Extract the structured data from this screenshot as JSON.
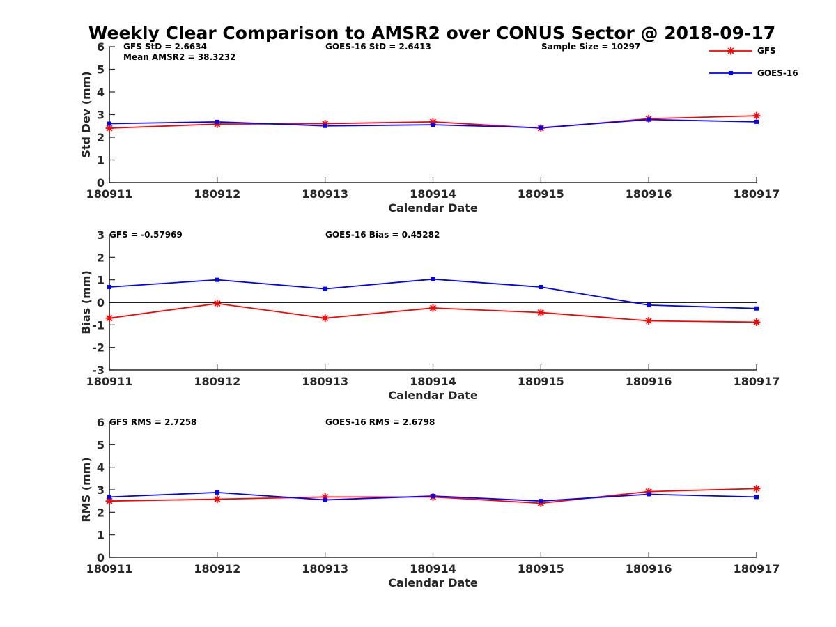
{
  "title": "Weekly Clear Comparison to AMSR2 over CONUS Sector @ 2018-09-17",
  "legend": [
    {
      "name": "GFS",
      "color": "#ff0000",
      "marker": "asterisk"
    },
    {
      "name": "GOES-16",
      "color": "#0000ff",
      "marker": "square"
    }
  ],
  "chart_data": [
    {
      "type": "line",
      "xlabel": "Calendar Date",
      "ylabel": "Std Dev (mm)",
      "ylim": [
        0,
        6
      ],
      "yticks": [
        "0",
        "1",
        "2",
        "3",
        "4",
        "5",
        "6"
      ],
      "categories": [
        "180911",
        "180912",
        "180913",
        "180914",
        "180915",
        "180916",
        "180917"
      ],
      "series": [
        {
          "name": "GFS",
          "color": "#ff0000",
          "values": [
            2.4,
            2.58,
            2.6,
            2.68,
            2.4,
            2.82,
            2.95
          ]
        },
        {
          "name": "GOES-16",
          "color": "#0000ff",
          "values": [
            2.6,
            2.68,
            2.5,
            2.55,
            2.42,
            2.78,
            2.68
          ]
        }
      ],
      "zero_line": false,
      "annotations": [
        "GFS StD = 2.6634",
        "Mean AMSR2 = 38.3232",
        "GOES-16 StD = 2.6413",
        "Sample Size = 10297"
      ]
    },
    {
      "type": "line",
      "xlabel": "Calendar Date",
      "ylabel": "Bias (mm)",
      "ylim": [
        -3,
        3
      ],
      "yticks": [
        "-3",
        "-2",
        "-1",
        "0",
        "1",
        "2",
        "3"
      ],
      "categories": [
        "180911",
        "180912",
        "180913",
        "180914",
        "180915",
        "180916",
        "180917"
      ],
      "series": [
        {
          "name": "GFS",
          "color": "#ff0000",
          "values": [
            -0.7,
            -0.05,
            -0.7,
            -0.25,
            -0.45,
            -0.82,
            -0.88
          ]
        },
        {
          "name": "GOES-16",
          "color": "#0000ff",
          "values": [
            0.68,
            1.0,
            0.6,
            1.03,
            0.68,
            -0.12,
            -0.27
          ]
        }
      ],
      "zero_line": true,
      "annotations": [
        "GFS = -0.57969",
        "GOES-16 Bias  = 0.45282"
      ]
    },
    {
      "type": "line",
      "xlabel": "Calendar Date",
      "ylabel": "RMS (mm)",
      "ylim": [
        0,
        6
      ],
      "yticks": [
        "0",
        "1",
        "2",
        "3",
        "4",
        "5",
        "6"
      ],
      "categories": [
        "180911",
        "180912",
        "180913",
        "180914",
        "180915",
        "180916",
        "180917"
      ],
      "series": [
        {
          "name": "GFS",
          "color": "#ff0000",
          "values": [
            2.5,
            2.58,
            2.68,
            2.68,
            2.4,
            2.92,
            3.05
          ]
        },
        {
          "name": "GOES-16",
          "color": "#0000ff",
          "values": [
            2.68,
            2.88,
            2.55,
            2.72,
            2.5,
            2.8,
            2.68
          ]
        }
      ],
      "zero_line": false,
      "annotations": [
        "GFS RMS = 2.7258",
        "GOES-16 RMS = 2.6798"
      ]
    }
  ]
}
